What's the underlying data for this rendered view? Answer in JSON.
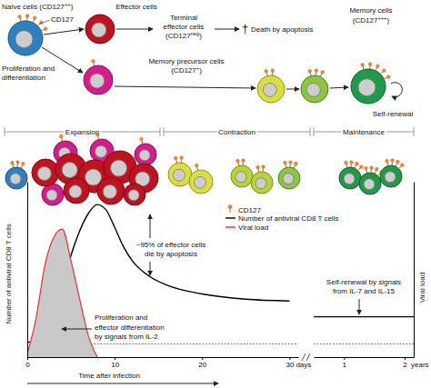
{
  "diagram": {
    "naive": {
      "lines": [
        {
          "text": "Naïve cells (CD127",
          "sup": "++",
          "end": ")"
        }
      ]
    },
    "cd127": {
      "lines": [
        "CD127"
      ]
    },
    "proliferation": {
      "lines": [
        "Proliferation and",
        "differentiation"
      ]
    },
    "effector": {
      "lines": [
        "Effector cells"
      ]
    },
    "terminal": {
      "lines": [
        "Terminal",
        "effector cells",
        {
          "text": "(CD127",
          "sup": "neg",
          "end": ")"
        }
      ]
    },
    "death": {
      "symbol": "†",
      "lines": [
        "Death by apoptosis"
      ]
    },
    "memory_precursor": {
      "lines": [
        "Memory precursor cells",
        {
          "text": "(CD127",
          "sup": "+",
          "end": ")"
        }
      ]
    },
    "memory": {
      "lines": [
        "Memory cells",
        {
          "text": "(CD127",
          "sup": "+++",
          "end": ")"
        }
      ]
    },
    "self_renewal": {
      "lines": [
        "Self-renewal"
      ]
    },
    "phases": [
      "Expansion",
      "Contraction",
      "Maintenance"
    ],
    "cd127_legend": "CD127"
  },
  "chart_data": [
    {
      "type": "line",
      "x_label": "Time after infection",
      "y_label": "Number of antiviral CD8 T cells",
      "y2_label": "Viral load",
      "x_unit": "days",
      "x": [
        0,
        1,
        2,
        3,
        4,
        5,
        6,
        7,
        8,
        9,
        10,
        11,
        12,
        14,
        16,
        20,
        25,
        30
      ],
      "series": [
        {
          "name": "Number of antiviral CD8 T cells",
          "color": "#000000",
          "values": [
            8.5,
            9,
            11,
            20,
            39,
            58,
            72,
            82,
            87,
            84,
            74,
            63,
            55,
            46,
            41,
            36,
            33,
            32
          ]
        },
        {
          "name": "Viral load",
          "color": "#e8302a",
          "type": "area",
          "axis": "y2",
          "values": [
            2,
            22,
            52,
            68,
            73,
            55,
            33,
            12,
            0,
            null,
            null,
            null,
            null,
            null,
            null,
            null,
            null,
            null
          ]
        }
      ],
      "xlim": [
        0,
        31
      ],
      "xticks": [
        0,
        10,
        20,
        30
      ],
      "ylim": [
        0,
        100
      ],
      "y2lim": [
        0,
        100
      ],
      "tick_labels": "x",
      "legend": "top-right",
      "reference_line": 7.5,
      "annotations": [
        {
          "lines": [
            "~95% of effector cells",
            "die by apoptosis"
          ]
        },
        {
          "lines": [
            "Proliferation and",
            "effector differentiation",
            "by signals from IL-2"
          ]
        }
      ]
    },
    {
      "type": "line",
      "x_unit": "years",
      "x": [
        0.5,
        2.15
      ],
      "series": [
        {
          "color": "#000000",
          "values": [
            23,
            23
          ]
        }
      ],
      "xlim": [
        0.5,
        2.15
      ],
      "xticks": [
        1,
        2
      ],
      "ylim": [
        0,
        100
      ],
      "tick_labels": "x",
      "reference_line": 7.5,
      "annotations": [
        {
          "lines": [
            "Self-renewal by signals",
            "from IL-7 and IL-15"
          ]
        }
      ]
    }
  ]
}
